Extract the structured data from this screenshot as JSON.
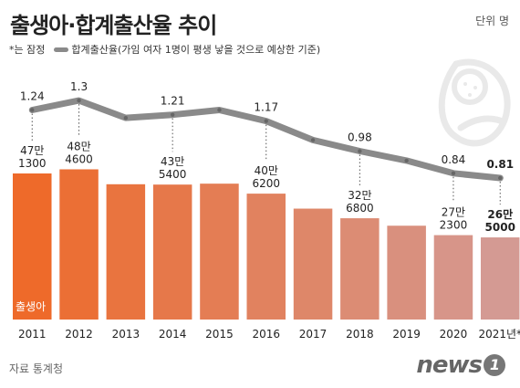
{
  "title": "출생아·합계출산율 추이",
  "unit_label": "단위 명",
  "legend": {
    "provisional_note": "*는 잠정",
    "line_label": "합계출산율(가임 여자 1명이 평생 낳을 것으로 예상한 기준)"
  },
  "bar_series_label": "출생아",
  "source": "자료 통계청",
  "logo": {
    "text": "news",
    "mark": "1"
  },
  "icon": "baby-icon",
  "colors": {
    "bar_start": "#ee6a2a",
    "bar_end": "#d49a93",
    "line": "#8a8a8a",
    "text": "#222222"
  },
  "chart_data": {
    "type": "bar",
    "categories": [
      "2011",
      "2012",
      "2013",
      "2014",
      "2015",
      "2016",
      "2017",
      "2018",
      "2019",
      "2020",
      "2021년*"
    ],
    "series": [
      {
        "name": "출생아",
        "type": "bar",
        "values": [
          471300,
          484600,
          436500,
          435400,
          438400,
          406200,
          357800,
          326800,
          302700,
          272300,
          265000
        ],
        "labels": [
          [
            "47만",
            "1300"
          ],
          [
            "48만",
            "4600"
          ],
          null,
          [
            "43만",
            "5400"
          ],
          null,
          [
            "40만",
            "6200"
          ],
          null,
          [
            "32만",
            "6800"
          ],
          null,
          [
            "27만",
            "2300"
          ],
          [
            "26만",
            "5000"
          ]
        ]
      },
      {
        "name": "합계출산율",
        "type": "line",
        "values": [
          1.24,
          1.3,
          1.19,
          1.21,
          1.24,
          1.17,
          1.05,
          0.98,
          0.92,
          0.84,
          0.81
        ],
        "labels": [
          "1.24",
          "1.3",
          null,
          "1.21",
          null,
          "1.17",
          null,
          "0.98",
          null,
          "0.84",
          "0.81"
        ]
      }
    ],
    "ylim_bar": [
      0,
      600000
    ],
    "ylim_line": [
      0,
      1.45
    ],
    "grid": false,
    "legend_position": "top-left"
  }
}
